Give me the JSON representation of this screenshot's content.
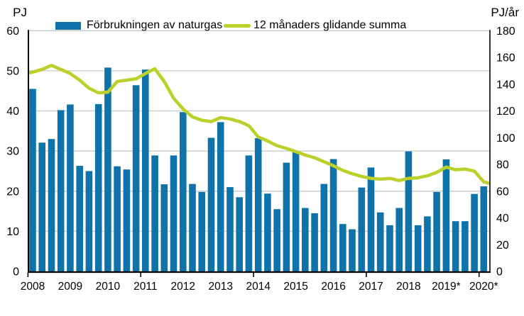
{
  "axis_unit_labels": {
    "left": "PJ",
    "right": "PJ/år"
  },
  "legend": {
    "items": [
      {
        "label": "Förbrukningen av naturgas",
        "marker": "bar",
        "color": "#0f73a9"
      },
      {
        "label": "12 månaders glidande summa",
        "marker": "line",
        "color": "#bcd02c"
      }
    ]
  },
  "chart_data": {
    "type": "bar+line",
    "frequency": "quarterly",
    "title": "",
    "x_year_labels": [
      "2008",
      "2009",
      "2010",
      "2011",
      "2012",
      "2013",
      "2014",
      "2015",
      "2016",
      "2017",
      "2018",
      "2019*",
      "2020*"
    ],
    "x_axis_tick_mark_years": [
      2008,
      2011,
      2014,
      2017,
      2020
    ],
    "left_axis": {
      "label": "PJ",
      "min": 0,
      "max": 60,
      "step": 10
    },
    "right_axis": {
      "label": "PJ/år",
      "min": 0,
      "max": 180,
      "step": 20
    },
    "grid": true,
    "legend_position": "top",
    "series": [
      {
        "name": "Förbrukningen av naturgas",
        "type": "bar",
        "axis": "left",
        "unit": "PJ",
        "color": "#0f73a9",
        "values": [
          45.5,
          32.1,
          33.0,
          40.2,
          41.6,
          26.3,
          25.0,
          41.7,
          50.8,
          26.2,
          25.4,
          46.4,
          50.3,
          28.9,
          21.7,
          28.9,
          39.7,
          21.8,
          19.8,
          33.3,
          37.2,
          21.0,
          18.5,
          28.9,
          33.2,
          19.4,
          15.5,
          27.1,
          29.8,
          15.8,
          14.5,
          21.8,
          28.0,
          11.8,
          10.5,
          20.9,
          25.9,
          14.7,
          11.5,
          15.8,
          29.9,
          11.5,
          13.7,
          19.8,
          27.9,
          12.5,
          12.5,
          19.3,
          21.2
        ]
      },
      {
        "name": "12 månaders glidande summa",
        "type": "line",
        "axis": "right",
        "unit": "PJ/år",
        "color": "#bcd02c",
        "edge_start": 148.5,
        "edge_end": 66,
        "values": [
          149,
          151,
          154,
          151,
          148,
          143,
          137,
          133.5,
          134,
          142,
          143,
          144,
          148,
          151.5,
          142,
          129.5,
          121.5,
          115.5,
          113,
          112,
          115,
          114,
          112,
          109,
          100.5,
          97.5,
          94,
          92,
          89.5,
          87,
          85,
          82,
          79,
          75.5,
          73,
          71,
          69.5,
          69,
          69.5,
          68,
          69.5,
          70,
          71.5,
          74,
          78,
          76,
          76.5,
          75,
          67
        ]
      }
    ]
  },
  "style": {
    "gridline_color": "#c8c8c8",
    "axis_color": "#000000",
    "background": "#ffffff"
  }
}
